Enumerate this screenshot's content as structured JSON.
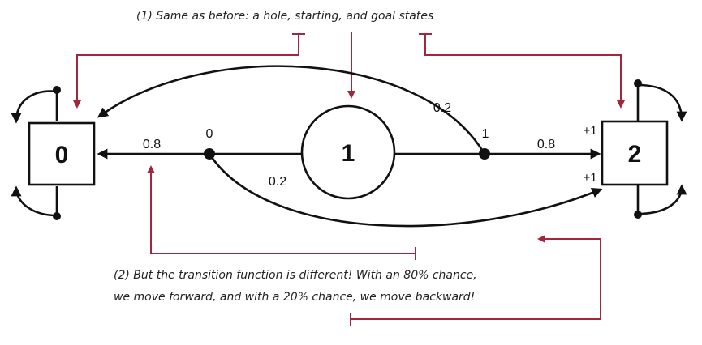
{
  "annotations": {
    "top": "(1) Same as before: a hole, starting, and goal states",
    "bottom_line1": "(2) But the transition function is different! With an 80% chance,",
    "bottom_line2": "we move forward, and with a 20% chance, we move backward!"
  },
  "nodes": {
    "left_state": "0",
    "middle_state": "1",
    "right_state": "2"
  },
  "action_labels": {
    "left_action": "0",
    "right_action": "1"
  },
  "probabilities": {
    "left_to_0": "0.8",
    "left_to_2": "0.2",
    "right_to_2": "0.8",
    "right_to_0": "0.2"
  },
  "rewards": {
    "into_goal_from_right": "+1",
    "into_goal_from_left": "+1"
  },
  "colors": {
    "ink": "#111111",
    "callout": "#a3263f"
  }
}
